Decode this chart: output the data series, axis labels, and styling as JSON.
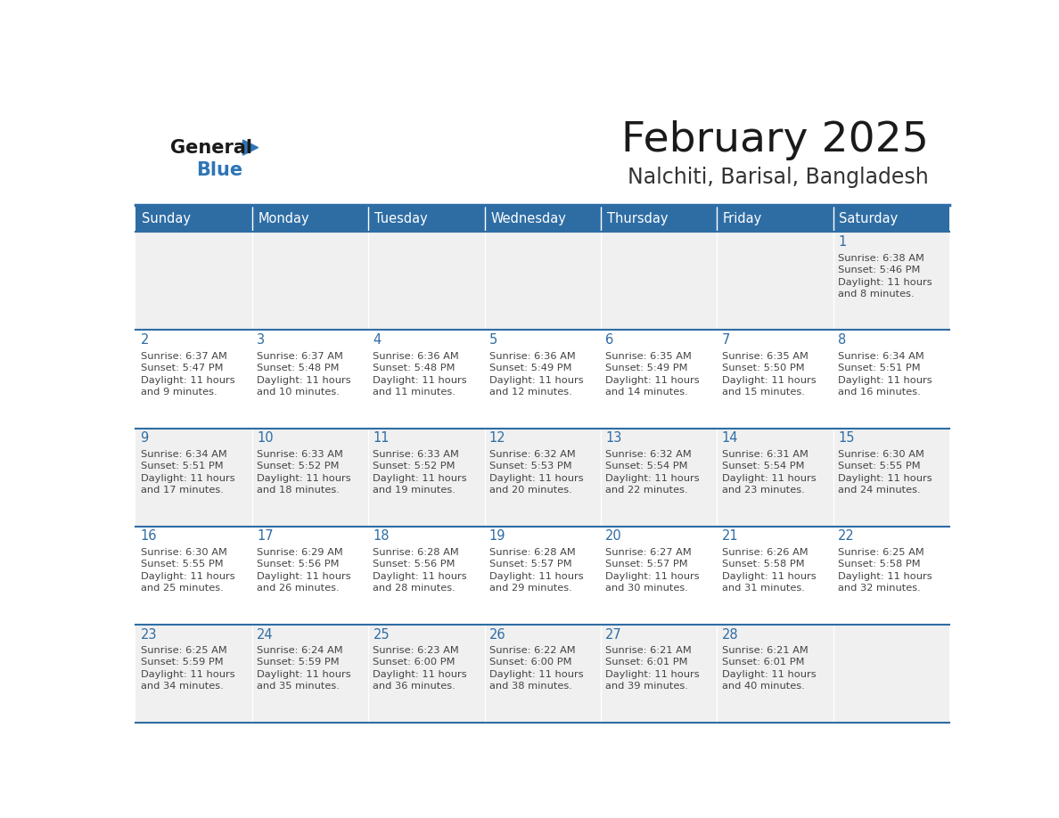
{
  "title": "February 2025",
  "subtitle": "Nalchiti, Barisal, Bangladesh",
  "days_of_week": [
    "Sunday",
    "Monday",
    "Tuesday",
    "Wednesday",
    "Thursday",
    "Friday",
    "Saturday"
  ],
  "header_bg": "#2E6DA4",
  "header_text": "#FFFFFF",
  "cell_bg_odd": "#F0F0F0",
  "cell_bg_even": "#FFFFFF",
  "day_num_color": "#2E6DA4",
  "text_color": "#444444",
  "border_color": "#2E6DA4",
  "logo_general_color": "#1a1a1a",
  "logo_blue_color": "#2E75B6",
  "calendar_data": [
    [
      null,
      null,
      null,
      null,
      null,
      null,
      {
        "day": 1,
        "sunrise": "6:38 AM",
        "sunset": "5:46 PM",
        "daylight": "11 hours",
        "daylight2": "and 8 minutes."
      }
    ],
    [
      {
        "day": 2,
        "sunrise": "6:37 AM",
        "sunset": "5:47 PM",
        "daylight": "11 hours",
        "daylight2": "and 9 minutes."
      },
      {
        "day": 3,
        "sunrise": "6:37 AM",
        "sunset": "5:48 PM",
        "daylight": "11 hours",
        "daylight2": "and 10 minutes."
      },
      {
        "day": 4,
        "sunrise": "6:36 AM",
        "sunset": "5:48 PM",
        "daylight": "11 hours",
        "daylight2": "and 11 minutes."
      },
      {
        "day": 5,
        "sunrise": "6:36 AM",
        "sunset": "5:49 PM",
        "daylight": "11 hours",
        "daylight2": "and 12 minutes."
      },
      {
        "day": 6,
        "sunrise": "6:35 AM",
        "sunset": "5:49 PM",
        "daylight": "11 hours",
        "daylight2": "and 14 minutes."
      },
      {
        "day": 7,
        "sunrise": "6:35 AM",
        "sunset": "5:50 PM",
        "daylight": "11 hours",
        "daylight2": "and 15 minutes."
      },
      {
        "day": 8,
        "sunrise": "6:34 AM",
        "sunset": "5:51 PM",
        "daylight": "11 hours",
        "daylight2": "and 16 minutes."
      }
    ],
    [
      {
        "day": 9,
        "sunrise": "6:34 AM",
        "sunset": "5:51 PM",
        "daylight": "11 hours",
        "daylight2": "and 17 minutes."
      },
      {
        "day": 10,
        "sunrise": "6:33 AM",
        "sunset": "5:52 PM",
        "daylight": "11 hours",
        "daylight2": "and 18 minutes."
      },
      {
        "day": 11,
        "sunrise": "6:33 AM",
        "sunset": "5:52 PM",
        "daylight": "11 hours",
        "daylight2": "and 19 minutes."
      },
      {
        "day": 12,
        "sunrise": "6:32 AM",
        "sunset": "5:53 PM",
        "daylight": "11 hours",
        "daylight2": "and 20 minutes."
      },
      {
        "day": 13,
        "sunrise": "6:32 AM",
        "sunset": "5:54 PM",
        "daylight": "11 hours",
        "daylight2": "and 22 minutes."
      },
      {
        "day": 14,
        "sunrise": "6:31 AM",
        "sunset": "5:54 PM",
        "daylight": "11 hours",
        "daylight2": "and 23 minutes."
      },
      {
        "day": 15,
        "sunrise": "6:30 AM",
        "sunset": "5:55 PM",
        "daylight": "11 hours",
        "daylight2": "and 24 minutes."
      }
    ],
    [
      {
        "day": 16,
        "sunrise": "6:30 AM",
        "sunset": "5:55 PM",
        "daylight": "11 hours",
        "daylight2": "and 25 minutes."
      },
      {
        "day": 17,
        "sunrise": "6:29 AM",
        "sunset": "5:56 PM",
        "daylight": "11 hours",
        "daylight2": "and 26 minutes."
      },
      {
        "day": 18,
        "sunrise": "6:28 AM",
        "sunset": "5:56 PM",
        "daylight": "11 hours",
        "daylight2": "and 28 minutes."
      },
      {
        "day": 19,
        "sunrise": "6:28 AM",
        "sunset": "5:57 PM",
        "daylight": "11 hours",
        "daylight2": "and 29 minutes."
      },
      {
        "day": 20,
        "sunrise": "6:27 AM",
        "sunset": "5:57 PM",
        "daylight": "11 hours",
        "daylight2": "and 30 minutes."
      },
      {
        "day": 21,
        "sunrise": "6:26 AM",
        "sunset": "5:58 PM",
        "daylight": "11 hours",
        "daylight2": "and 31 minutes."
      },
      {
        "day": 22,
        "sunrise": "6:25 AM",
        "sunset": "5:58 PM",
        "daylight": "11 hours",
        "daylight2": "and 32 minutes."
      }
    ],
    [
      {
        "day": 23,
        "sunrise": "6:25 AM",
        "sunset": "5:59 PM",
        "daylight": "11 hours",
        "daylight2": "and 34 minutes."
      },
      {
        "day": 24,
        "sunrise": "6:24 AM",
        "sunset": "5:59 PM",
        "daylight": "11 hours",
        "daylight2": "and 35 minutes."
      },
      {
        "day": 25,
        "sunrise": "6:23 AM",
        "sunset": "6:00 PM",
        "daylight": "11 hours",
        "daylight2": "and 36 minutes."
      },
      {
        "day": 26,
        "sunrise": "6:22 AM",
        "sunset": "6:00 PM",
        "daylight": "11 hours",
        "daylight2": "and 38 minutes."
      },
      {
        "day": 27,
        "sunrise": "6:21 AM",
        "sunset": "6:01 PM",
        "daylight": "11 hours",
        "daylight2": "and 39 minutes."
      },
      {
        "day": 28,
        "sunrise": "6:21 AM",
        "sunset": "6:01 PM",
        "daylight": "11 hours",
        "daylight2": "and 40 minutes."
      },
      null
    ]
  ]
}
